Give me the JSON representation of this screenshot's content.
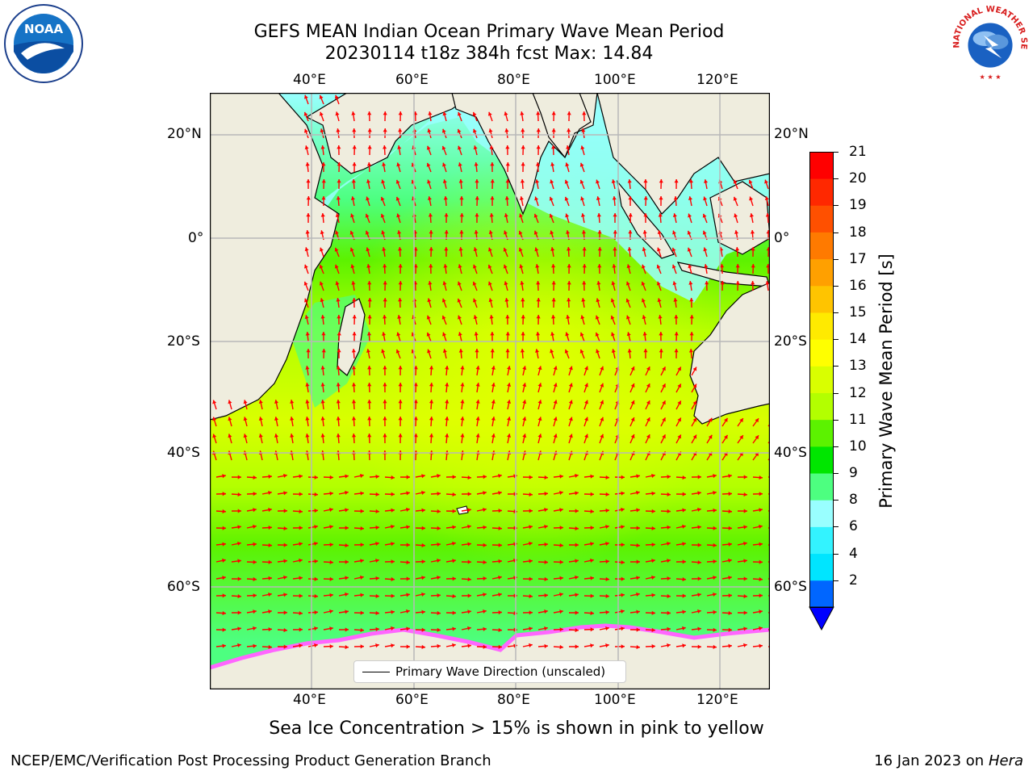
{
  "title": {
    "line1": "GEFS MEAN Indian Ocean Primary Wave Mean Period",
    "line2": "20230114 t18z 384h fcst   Max: 14.84"
  },
  "map": {
    "lon_labels": [
      "40°E",
      "60°E",
      "80°E",
      "100°E",
      "120°E"
    ],
    "lat_labels": [
      "20°N",
      "0°",
      "20°S",
      "40°S",
      "60°S"
    ],
    "land_color": "#efedde",
    "grid_color": "#b8b8b8",
    "arrow_color": "#ff0000",
    "legend_label": "Primary Wave Direction (unscaled)"
  },
  "colorbar": {
    "label": "Primary Wave Mean Period [s]",
    "ticks": [
      "21",
      "20",
      "19",
      "18",
      "17",
      "16",
      "15",
      "14",
      "13",
      "12",
      "11",
      "10",
      "9",
      "8",
      "6",
      "4",
      "2"
    ],
    "colors_bottom_to_top": [
      "#0066ff",
      "#00e5ff",
      "#33f3ff",
      "#99ffff",
      "#4dff80",
      "#00e600",
      "#5cf200",
      "#b3ff00",
      "#d9ff00",
      "#ffff00",
      "#ffea00",
      "#ffc400",
      "#ffa000",
      "#ff7a00",
      "#ff5000",
      "#ff2800",
      "#ff0000"
    ],
    "extend_color": "#0000ff"
  },
  "subtitle": "Sea Ice Concentration > 15% is shown in pink to yellow",
  "footer": {
    "left": "NCEP/EMC/Verification Post Processing Product Generation Branch",
    "date": "16 Jan 2023 on",
    "machine": "Hera"
  },
  "logos": {
    "noaa_text": "NOAA",
    "nws_text": "NATIONAL WEATHER SERVICE"
  }
}
